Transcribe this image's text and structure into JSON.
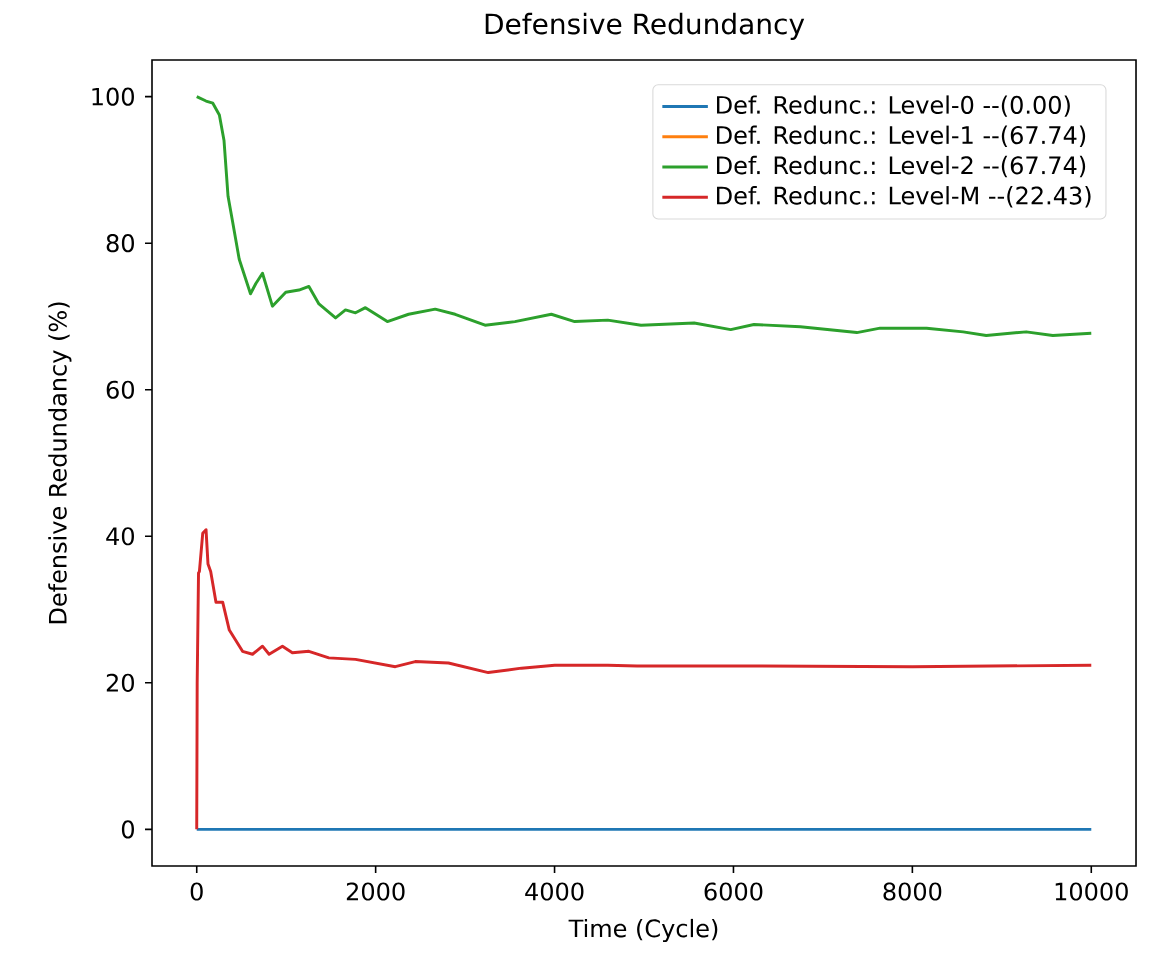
{
  "chart_data": {
    "type": "line",
    "title": "Defensive Redundancy",
    "xlabel": "Time (Cycle)",
    "ylabel": "Defensive Redundancy (%)",
    "xlim": [
      -500,
      10500
    ],
    "ylim": [
      -5,
      105
    ],
    "xticks": [
      0,
      2000,
      4000,
      6000,
      8000,
      10000
    ],
    "yticks": [
      0,
      20,
      40,
      60,
      80,
      100
    ],
    "legend": "top right",
    "grid": false,
    "marker": "none",
    "line_style": "solid",
    "series": [
      {
        "name": "Def. Redunc.: Level-0 --(0.00)",
        "color": "#1f77b4",
        "x": [
          0,
          10000
        ],
        "values": [
          0,
          0
        ]
      },
      {
        "name": "Def. Redunc.: Level-1 --(67.74)",
        "color": "#ff7f0e"
      },
      {
        "name": "Def. Redunc.: Level-2 --(67.74)",
        "color": "#2ca02c",
        "x": [
          0,
          104,
          180,
          253,
          305,
          350,
          400,
          475,
          601,
          661,
          735,
          846,
          995,
          1143,
          1254,
          1366,
          1552,
          1663,
          1775,
          1886,
          2131,
          2368,
          2666,
          2889,
          3223,
          3557,
          3964,
          4225,
          4595,
          4967,
          5561,
          5969,
          6229,
          6748,
          7379,
          7639,
          8159,
          8568,
          8826,
          9272,
          9570,
          10000
        ],
        "values": [
          100,
          99.4,
          99.1,
          97.5,
          94,
          86.4,
          83,
          77.8,
          73.1,
          74.5,
          75.9,
          71.4,
          73.3,
          73.6,
          74.1,
          71.7,
          69.8,
          70.9,
          70.5,
          71.2,
          69.3,
          70.3,
          71.0,
          70.3,
          68.8,
          69.3,
          70.3,
          69.3,
          69.5,
          68.8,
          69.1,
          68.2,
          68.9,
          68.6,
          67.8,
          68.4,
          68.4,
          67.9,
          67.4,
          67.9,
          67.4,
          67.7
        ]
      },
      {
        "name": "Def. Redunc.: Level-M --(22.43)",
        "color": "#d62728",
        "x": [
          0,
          5,
          20,
          30,
          67,
          104,
          126,
          156,
          215,
          290,
          364,
          512,
          624,
          735,
          809,
          958,
          1069,
          1254,
          1477,
          1775,
          2220,
          2443,
          2814,
          3259,
          3630,
          4002,
          4595,
          4922,
          6000,
          8000,
          10000
        ],
        "values": [
          0,
          20,
          35,
          35.2,
          40.4,
          40.9,
          36.2,
          35.2,
          31,
          31,
          27.2,
          24.3,
          23.9,
          25,
          23.9,
          25,
          24.1,
          24.3,
          23.4,
          23.2,
          22.2,
          22.9,
          22.7,
          21.4,
          22,
          22.4,
          22.4,
          22.3,
          22.3,
          22.2,
          22.4
        ]
      }
    ]
  }
}
